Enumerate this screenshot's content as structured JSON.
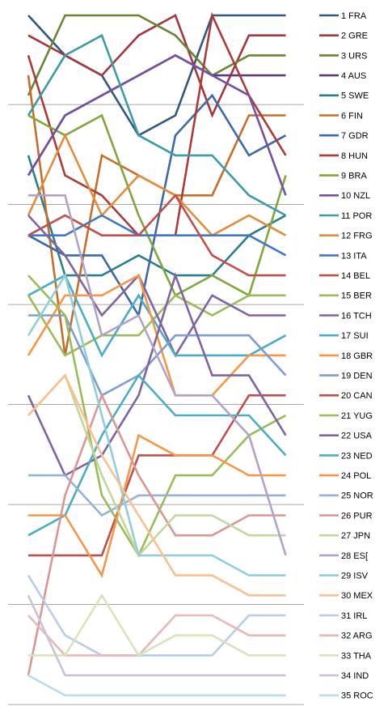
{
  "chart_data": {
    "type": "line",
    "x": [
      1,
      2,
      3,
      4,
      5,
      6,
      7,
      8
    ],
    "ylim": [
      1,
      35
    ],
    "y_inverted": true,
    "gridlines_every": 5,
    "legend": "right",
    "series": [
      {
        "name": "1 FRA",
        "color": "#31587f",
        "values": [
          1,
          3,
          4,
          7,
          6,
          1,
          1,
          1
        ]
      },
      {
        "name": "2 GRE",
        "color": "#a4373e",
        "values": [
          2,
          3,
          4,
          2,
          1,
          6,
          2,
          2
        ]
      },
      {
        "name": "3 URS",
        "color": "#678437",
        "values": [
          5,
          1,
          1,
          1,
          2,
          4,
          3,
          3
        ]
      },
      {
        "name": "4 AUS",
        "color": "#5f3b79",
        "values": [
          9,
          6,
          5,
          4,
          3,
          4,
          4,
          4
        ]
      },
      {
        "name": "5 SWE",
        "color": "#2a7e90",
        "values": [
          8,
          14,
          14,
          13,
          14,
          14,
          12,
          11
        ]
      },
      {
        "name": "6 FIN",
        "color": "#c76d2a",
        "values": [
          4,
          18,
          8,
          9,
          10,
          10,
          6,
          6
        ]
      },
      {
        "name": "7 GDR",
        "color": "#3d6aa6",
        "values": [
          12,
          13,
          13,
          16,
          7,
          5,
          8,
          7
        ]
      },
      {
        "name": "8 HUN",
        "color": "#ab3b39",
        "values": [
          3,
          9,
          10,
          12,
          12,
          1,
          5,
          8
        ]
      },
      {
        "name": "9 BRA",
        "color": "#80a63d",
        "values": [
          6,
          7,
          6,
          11,
          15,
          14,
          15,
          9
        ]
      },
      {
        "name": "10 NZL",
        "color": "#7350a0",
        "values": [
          9,
          6,
          5,
          4,
          3,
          4,
          5,
          10
        ]
      },
      {
        "name": "11 POR",
        "color": "#3b9ba9",
        "values": [
          6,
          3,
          2,
          7,
          8,
          8,
          10,
          11
        ]
      },
      {
        "name": "12 FRG",
        "color": "#e08d3c",
        "values": [
          11,
          7,
          11,
          9,
          10,
          12,
          11,
          12
        ]
      },
      {
        "name": "13 ITA",
        "color": "#4477c1",
        "values": [
          12,
          12,
          11,
          12,
          12,
          12,
          12,
          13
        ]
      },
      {
        "name": "14 BEL",
        "color": "#c24e4a",
        "values": [
          12,
          11,
          12,
          12,
          10,
          13,
          14,
          14
        ]
      },
      {
        "name": "15 BER",
        "color": "#9bbb59",
        "values": [
          15,
          18,
          17,
          17,
          15,
          16,
          15,
          15
        ]
      },
      {
        "name": "16 TCH",
        "color": "#8064a2",
        "values": [
          11,
          13,
          16,
          14,
          18,
          15,
          16,
          16
        ]
      },
      {
        "name": "17 SUI",
        "color": "#4bacc6",
        "values": [
          15,
          14,
          18,
          15,
          18,
          18,
          18,
          17
        ]
      },
      {
        "name": "18 GBR",
        "color": "#f79646",
        "values": [
          18,
          15,
          15,
          14,
          20,
          20,
          18,
          18
        ]
      },
      {
        "name": "19 DEN",
        "color": "#7f9dd1",
        "values": [
          16,
          16,
          20,
          19,
          17,
          17,
          17,
          19
        ]
      },
      {
        "name": "20 CAN",
        "color": "#c0504d",
        "values": [
          28,
          28,
          28,
          23,
          23,
          23,
          20,
          20
        ]
      },
      {
        "name": "21 YUG",
        "color": "#9bbb59",
        "values": [
          14,
          16,
          25,
          28,
          24,
          24,
          22,
          21
        ]
      },
      {
        "name": "22 USA",
        "color": "#8064a2",
        "values": [
          20,
          24,
          23,
          20,
          14,
          19,
          19,
          22
        ]
      },
      {
        "name": "23 NED",
        "color": "#4bacc6",
        "values": [
          27,
          26,
          22,
          19,
          21,
          21,
          21,
          23
        ]
      },
      {
        "name": "24 POL",
        "color": "#f79646",
        "values": [
          26,
          26,
          29,
          22,
          23,
          23,
          24,
          24
        ]
      },
      {
        "name": "25 NOR",
        "color": "#95b3d7",
        "values": [
          24,
          24,
          26,
          25,
          25,
          25,
          25,
          25
        ]
      },
      {
        "name": "26 PUR",
        "color": "#d99694",
        "values": [
          34,
          25,
          20,
          24,
          27,
          27,
          26,
          26
        ]
      },
      {
        "name": "27 JPN",
        "color": "#c3d69b",
        "values": [
          21,
          19,
          24,
          28,
          26,
          26,
          27,
          27
        ]
      },
      {
        "name": "28 ES[",
        "color": "#b3a2c7",
        "values": [
          10,
          10,
          17,
          16,
          20,
          20,
          22,
          28
        ]
      },
      {
        "name": "29 ISV",
        "color": "#92cddc",
        "values": [
          17,
          14,
          21,
          28,
          28,
          28,
          29,
          29
        ]
      },
      {
        "name": "30 MEX",
        "color": "#fac090",
        "values": [
          21,
          19,
          23,
          26,
          29,
          29,
          30,
          30
        ]
      },
      {
        "name": "31 IRL",
        "color": "#b9cde5",
        "values": [
          29,
          32,
          33,
          33,
          33,
          33,
          31,
          31
        ]
      },
      {
        "name": "32 ARG",
        "color": "#e6b9b8",
        "values": [
          31,
          33,
          33,
          33,
          31,
          31,
          32,
          32
        ]
      },
      {
        "name": "33 THA",
        "color": "#d7e4bc",
        "values": [
          33,
          33,
          30,
          33,
          32,
          32,
          33,
          33
        ]
      },
      {
        "name": "34 IND",
        "color": "#ccc1da",
        "values": [
          30,
          34,
          34,
          34,
          34,
          34,
          34,
          34
        ]
      },
      {
        "name": "35 ROC",
        "color": "#b7dee8",
        "values": [
          34,
          35,
          35,
          35,
          35,
          35,
          35,
          35
        ]
      }
    ]
  }
}
